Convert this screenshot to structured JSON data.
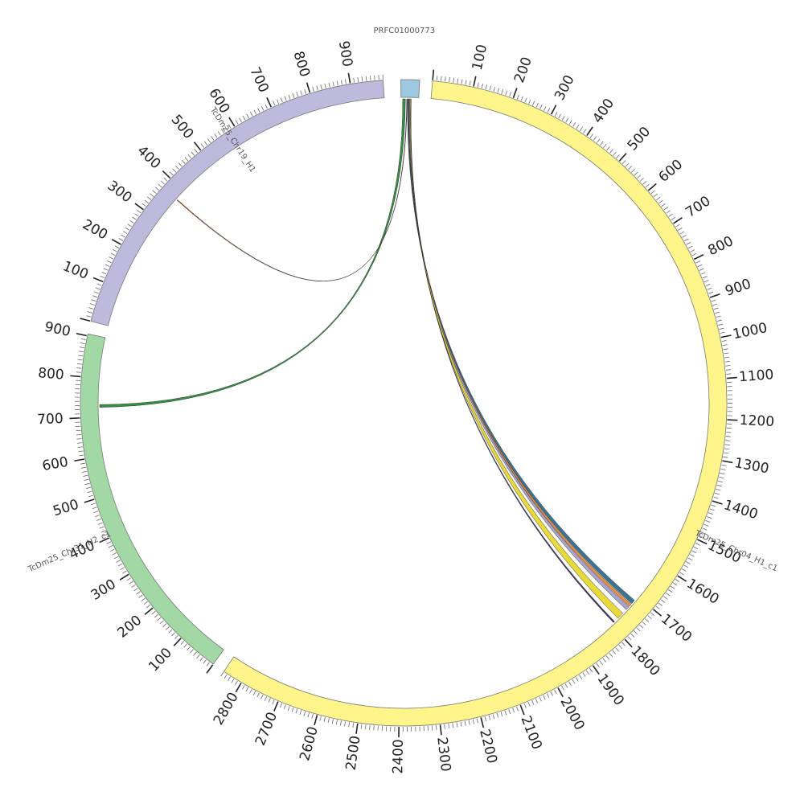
{
  "chart_data": {
    "type": "circos",
    "title": "",
    "tick_step": 100,
    "minor_tick_step": 10,
    "chromosomes": [
      {
        "id": "PRFC01000773",
        "label": "PRFC01000773",
        "length": 40,
        "color": "#9ec8df",
        "tick_labels": false
      },
      {
        "id": "TcDm25_Chr04_H1_c1",
        "label": "TcDm25_Chr04_H1_c1",
        "length": 2850,
        "color": "#fff58a",
        "tick_labels": true
      },
      {
        "id": "TcDm25_Chr31_H2_c1",
        "label": "TcDm25_Chr31_H2_c1",
        "length": 905,
        "color": "#a2d8a4",
        "tick_labels": true
      },
      {
        "id": "TcDm25_Chr19_H1",
        "label": "TcDm25_Chr19_H1",
        "length": 980,
        "color": "#bebadb",
        "tick_labels": true
      }
    ],
    "links": [
      {
        "src": "PRFC01000773",
        "src_start": 4,
        "src_end": 10,
        "dst": "TcDm25_Chr31_H2_c1",
        "dst_start": 725,
        "dst_end": 732,
        "color": "#2a8a3a"
      },
      {
        "src": "PRFC01000773",
        "src_start": 13,
        "src_end": 14,
        "dst": "TcDm25_Chr19_H1",
        "dst_start": 371,
        "dst_end": 373,
        "color": "#b65a2a"
      },
      {
        "src": "PRFC01000773",
        "src_start": 15,
        "src_end": 17,
        "dst": "TcDm25_Chr04_H1_c1",
        "dst_start": 1713,
        "dst_end": 1724,
        "color": "#2e6e8e"
      },
      {
        "src": "PRFC01000773",
        "src_start": 17,
        "src_end": 18,
        "dst": "TcDm25_Chr04_H1_c1",
        "dst_start": 1726,
        "dst_end": 1733,
        "color": "#f08a3a"
      },
      {
        "src": "PRFC01000773",
        "src_start": 18,
        "src_end": 20,
        "dst": "TcDm25_Chr04_H1_c1",
        "dst_start": 1735,
        "dst_end": 1745,
        "color": "#a8a0c8"
      },
      {
        "src": "PRFC01000773",
        "src_start": 20,
        "src_end": 22,
        "dst": "TcDm25_Chr04_H1_c1",
        "dst_start": 1758,
        "dst_end": 1776,
        "color": "#e8d830"
      },
      {
        "src": "PRFC01000773",
        "src_start": 22,
        "src_end": 23,
        "dst": "TcDm25_Chr04_H1_c1",
        "dst_start": 1788,
        "dst_end": 1792,
        "color": "#3a2a5a"
      }
    ]
  }
}
